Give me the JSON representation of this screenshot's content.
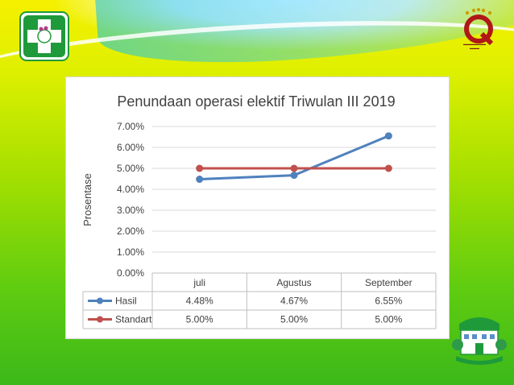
{
  "chart_data": {
    "type": "line",
    "title": "Penundaan operasi elektif Triwulan III 2019",
    "ylabel": "Prosentase",
    "xlabel": "",
    "categories": [
      "juli",
      "Agustus",
      "September"
    ],
    "ylim": [
      0,
      7
    ],
    "yticks": [
      "0.00%",
      "1.00%",
      "2.00%",
      "3.00%",
      "4.00%",
      "5.00%",
      "6.00%",
      "7.00%"
    ],
    "grid": true,
    "legend": "data-table",
    "series": [
      {
        "name": "Hasil",
        "values": [
          4.48,
          4.67,
          6.55
        ],
        "labels": [
          "4.48%",
          "4.67%",
          "6.55%"
        ],
        "color": "#4f81bd"
      },
      {
        "name": "Standart",
        "values": [
          5.0,
          5.0,
          5.0
        ],
        "labels": [
          "5.00%",
          "5.00%",
          "5.00%"
        ],
        "color": "#c0504d"
      }
    ]
  },
  "colors": {
    "gh_green": "#1f9a3a",
    "q_red": "#b01818"
  },
  "icons": [
    "gh-cross-logo",
    "quality-q-logo",
    "hospital-building-logo"
  ]
}
